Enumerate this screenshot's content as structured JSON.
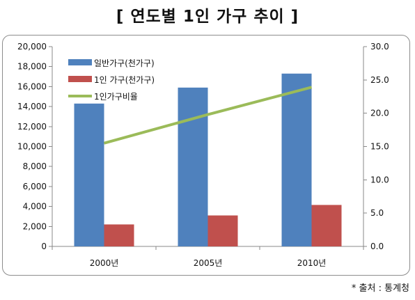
{
  "title": "[ 연도별 1인 가구 추이 ]",
  "source": "* 출처 : 통계청",
  "chart_data": {
    "type": "bar",
    "categories": [
      "2000년",
      "2005년",
      "2010년"
    ],
    "series": [
      {
        "name": "일반가구(천가구)",
        "type": "bar",
        "axis": "left",
        "color": "#4f81bd",
        "values": [
          14300,
          15900,
          17300
        ]
      },
      {
        "name": "1인 가구(천가구)",
        "type": "bar",
        "axis": "left",
        "color": "#c0504d",
        "values": [
          2200,
          3100,
          4150
        ]
      },
      {
        "name": "1인가구비율",
        "type": "line",
        "axis": "right",
        "color": "#9bbb59",
        "values": [
          15.5,
          19.8,
          23.9
        ]
      }
    ],
    "y_left": {
      "min": 0,
      "max": 20000,
      "step": 2000,
      "tick_labels": [
        "0",
        "2,000",
        "4,000",
        "6,000",
        "8,000",
        "10,000",
        "12,000",
        "14,000",
        "16,000",
        "18,000",
        "20,000"
      ]
    },
    "y_right": {
      "min": 0,
      "max": 30,
      "step": 5,
      "tick_labels": [
        "0.0",
        "5.0",
        "10.0",
        "15.0",
        "20.0",
        "25.0",
        "30.0"
      ]
    },
    "grid": false,
    "legend_position": "top-left"
  }
}
